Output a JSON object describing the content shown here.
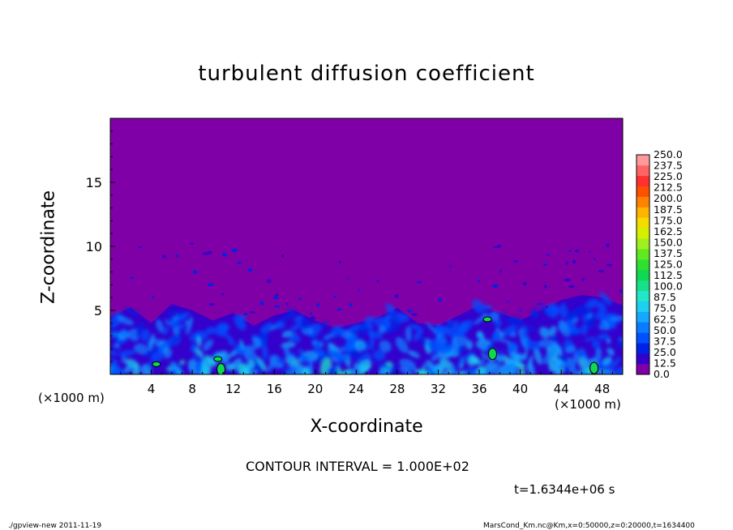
{
  "chart_data": {
    "type": "heatmap",
    "title": "turbulent diffusion coefficient",
    "xlabel": "X-coordinate",
    "ylabel": "Z-coordinate",
    "x_unit_label": "(×1000 m)",
    "xlim": [
      0,
      50
    ],
    "ylim": [
      0,
      20
    ],
    "x_ticks": [
      4,
      8,
      12,
      16,
      20,
      24,
      28,
      32,
      36,
      40,
      44,
      48
    ],
    "y_ticks": [
      5,
      10,
      15
    ],
    "colorbar": {
      "levels": [
        "0.0",
        "12.5",
        "25.0",
        "37.5",
        "50.0",
        "62.5",
        "75.0",
        "87.5",
        "100.0",
        "112.5",
        "125.0",
        "137.5",
        "150.0",
        "162.5",
        "175.0",
        "187.5",
        "200.0",
        "212.5",
        "225.0",
        "237.5",
        "250.0"
      ],
      "colors": [
        "#7f00a6",
        "#3300cc",
        "#0022e6",
        "#0050ff",
        "#0a7cff",
        "#14a8ff",
        "#1ecff0",
        "#22e6c8",
        "#16e08a",
        "#10d850",
        "#30e030",
        "#60e820",
        "#a0f020",
        "#d4f000",
        "#f4dc00",
        "#ffb400",
        "#ff8200",
        "#ff5000",
        "#ff3030",
        "#ff6464",
        "#ff9a9a"
      ]
    },
    "field_description_values": {
      "turbulent_layer_top_z": [
        4.5,
        5.2,
        4.0,
        5.5,
        5.0,
        4.2,
        4.8,
        3.8,
        4.6,
        5.0,
        4.2,
        3.6,
        4.0,
        4.4,
        5.2,
        4.0,
        3.8,
        4.6,
        5.4,
        4.8,
        4.2,
        5.0,
        5.8,
        6.2,
        6.0,
        5.4
      ]
    },
    "contour_interval": "CONTOUR INTERVAL = 1.000E+02",
    "time": "t=1.6344e+06 s"
  },
  "footer": {
    "left": "./gpview-new   2011-11-19",
    "right": "MarsCond_Km.nc@Km,x=0:50000,z=0:20000,t=1634400"
  },
  "colors": {
    "background_field": "#7f00a6"
  }
}
